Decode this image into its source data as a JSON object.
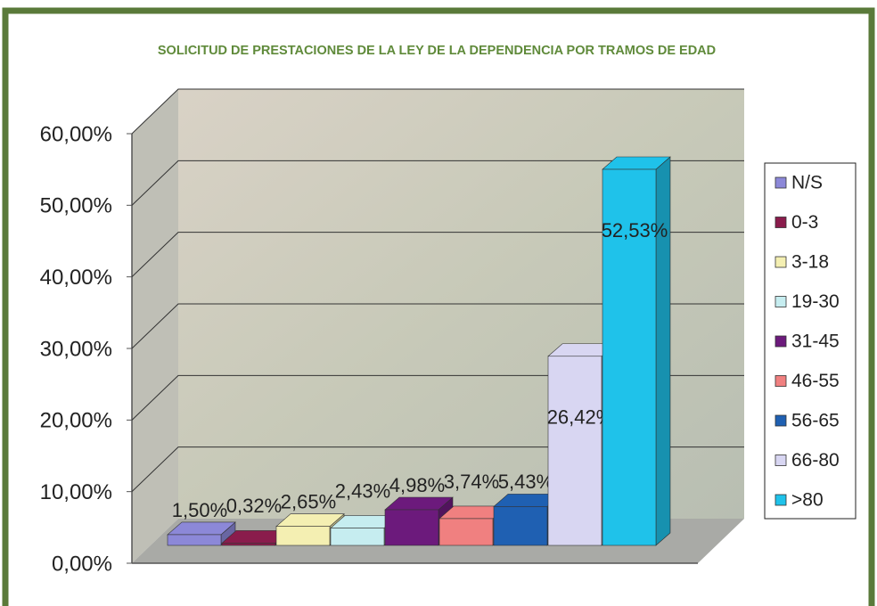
{
  "chart_data": {
    "type": "bar3d",
    "title": "SOLICITUD DE PRESTACIONES DE LA LEY DE LA DEPENDENCIA POR TRAMOS DE EDAD",
    "categories": [
      "N/S",
      "0-3",
      "3-18",
      "19-30",
      "31-45",
      "46-55",
      "56-65",
      "66-80",
      ">80"
    ],
    "values": [
      1.5,
      0.32,
      2.65,
      2.43,
      4.98,
      3.74,
      5.43,
      26.42,
      52.53
    ],
    "value_labels": [
      "1,50%",
      "0,32%",
      "2,65%",
      "2,43%",
      "4,98%",
      "3,74%",
      "5,43%",
      "26,42%",
      "52,53%"
    ],
    "colors": [
      "#8c88d8",
      "#8a1c4c",
      "#f4efb2",
      "#c6edf0",
      "#6c1a7c",
      "#f08080",
      "#1f60b2",
      "#d8d6f2",
      "#1fc2ea"
    ],
    "ylim": [
      0,
      60
    ],
    "yticks": [
      {
        "value": 0,
        "label": "0,00%"
      },
      {
        "value": 10,
        "label": "10,00%"
      },
      {
        "value": 20,
        "label": "20,00%"
      },
      {
        "value": 30,
        "label": "30,00%"
      },
      {
        "value": 40,
        "label": "40,00%"
      },
      {
        "value": 50,
        "label": "50,00%"
      },
      {
        "value": 60,
        "label": "60,00%"
      }
    ],
    "grid": true,
    "legend": "right"
  }
}
